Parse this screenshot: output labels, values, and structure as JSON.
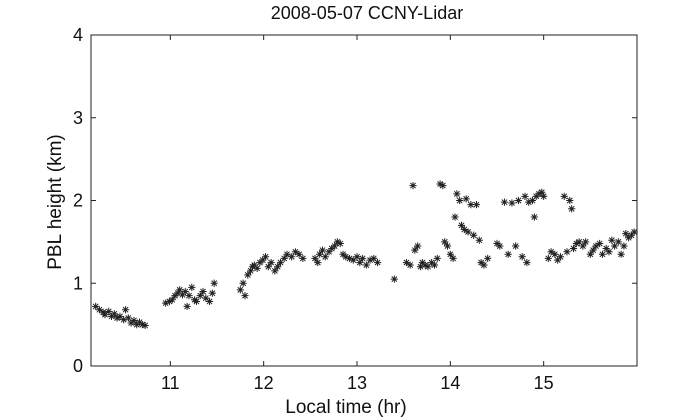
{
  "chart_data": {
    "type": "scatter",
    "title": "2008-05-07 CCNY-Lidar",
    "xlabel": "Local time (hr)",
    "ylabel": "PBL height (km)",
    "xlim": [
      10.15,
      16.0
    ],
    "ylim": [
      0,
      4
    ],
    "xticks": [
      11,
      12,
      13,
      14,
      15
    ],
    "yticks": [
      0,
      1,
      2,
      3,
      4
    ],
    "grid": false,
    "marker": "*",
    "color": "#222222",
    "points": [
      [
        10.2,
        0.72
      ],
      [
        10.24,
        0.68
      ],
      [
        10.28,
        0.65
      ],
      [
        10.3,
        0.62
      ],
      [
        10.34,
        0.66
      ],
      [
        10.37,
        0.6
      ],
      [
        10.4,
        0.63
      ],
      [
        10.43,
        0.58
      ],
      [
        10.46,
        0.6
      ],
      [
        10.5,
        0.56
      ],
      [
        10.52,
        0.68
      ],
      [
        10.55,
        0.58
      ],
      [
        10.58,
        0.52
      ],
      [
        10.61,
        0.55
      ],
      [
        10.64,
        0.5
      ],
      [
        10.67,
        0.53
      ],
      [
        10.7,
        0.5
      ],
      [
        10.73,
        0.49
      ],
      [
        10.95,
        0.76
      ],
      [
        10.99,
        0.78
      ],
      [
        11.02,
        0.8
      ],
      [
        11.05,
        0.85
      ],
      [
        11.08,
        0.88
      ],
      [
        11.1,
        0.92
      ],
      [
        11.13,
        0.86
      ],
      [
        11.16,
        0.9
      ],
      [
        11.18,
        0.72
      ],
      [
        11.2,
        0.85
      ],
      [
        11.23,
        0.95
      ],
      [
        11.26,
        0.8
      ],
      [
        11.28,
        0.78
      ],
      [
        11.32,
        0.85
      ],
      [
        11.35,
        0.9
      ],
      [
        11.38,
        0.82
      ],
      [
        11.42,
        0.78
      ],
      [
        11.45,
        0.88
      ],
      [
        11.47,
        1.0
      ],
      [
        11.75,
        0.92
      ],
      [
        11.78,
        1.0
      ],
      [
        11.8,
        0.85
      ],
      [
        11.83,
        1.1
      ],
      [
        11.86,
        1.15
      ],
      [
        11.88,
        1.2
      ],
      [
        11.9,
        1.22
      ],
      [
        11.93,
        1.18
      ],
      [
        11.96,
        1.25
      ],
      [
        11.99,
        1.28
      ],
      [
        12.02,
        1.32
      ],
      [
        12.05,
        1.2
      ],
      [
        12.08,
        1.25
      ],
      [
        12.12,
        1.15
      ],
      [
        12.15,
        1.2
      ],
      [
        12.18,
        1.25
      ],
      [
        12.22,
        1.3
      ],
      [
        12.25,
        1.35
      ],
      [
        12.3,
        1.32
      ],
      [
        12.34,
        1.38
      ],
      [
        12.38,
        1.35
      ],
      [
        12.42,
        1.3
      ],
      [
        12.55,
        1.3
      ],
      [
        12.58,
        1.25
      ],
      [
        12.6,
        1.35
      ],
      [
        12.63,
        1.4
      ],
      [
        12.66,
        1.32
      ],
      [
        12.7,
        1.38
      ],
      [
        12.73,
        1.42
      ],
      [
        12.76,
        1.45
      ],
      [
        12.79,
        1.5
      ],
      [
        12.82,
        1.48
      ],
      [
        12.85,
        1.35
      ],
      [
        12.88,
        1.32
      ],
      [
        12.92,
        1.3
      ],
      [
        12.96,
        1.28
      ],
      [
        13.0,
        1.32
      ],
      [
        13.03,
        1.25
      ],
      [
        13.06,
        1.3
      ],
      [
        13.1,
        1.22
      ],
      [
        13.14,
        1.28
      ],
      [
        13.18,
        1.3
      ],
      [
        13.22,
        1.25
      ],
      [
        13.4,
        1.05
      ],
      [
        13.53,
        1.25
      ],
      [
        13.57,
        1.22
      ],
      [
        13.6,
        2.18
      ],
      [
        13.62,
        1.4
      ],
      [
        13.65,
        1.45
      ],
      [
        13.68,
        1.2
      ],
      [
        13.7,
        1.25
      ],
      [
        13.73,
        1.22
      ],
      [
        13.76,
        1.2
      ],
      [
        13.8,
        1.25
      ],
      [
        13.83,
        1.22
      ],
      [
        13.86,
        1.3
      ],
      [
        13.89,
        2.2
      ],
      [
        13.92,
        2.18
      ],
      [
        13.94,
        1.5
      ],
      [
        13.97,
        1.45
      ],
      [
        14.0,
        1.35
      ],
      [
        14.03,
        1.3
      ],
      [
        14.05,
        1.8
      ],
      [
        14.07,
        2.08
      ],
      [
        14.1,
        2.0
      ],
      [
        14.12,
        1.7
      ],
      [
        14.15,
        1.65
      ],
      [
        14.17,
        2.02
      ],
      [
        14.19,
        1.62
      ],
      [
        14.22,
        1.95
      ],
      [
        14.25,
        1.58
      ],
      [
        14.28,
        1.95
      ],
      [
        14.31,
        1.52
      ],
      [
        14.33,
        1.25
      ],
      [
        14.36,
        1.22
      ],
      [
        14.4,
        1.3
      ],
      [
        14.5,
        1.48
      ],
      [
        14.53,
        1.45
      ],
      [
        14.58,
        1.98
      ],
      [
        14.62,
        1.35
      ],
      [
        14.66,
        1.97
      ],
      [
        14.7,
        1.45
      ],
      [
        14.73,
        2.0
      ],
      [
        14.77,
        1.32
      ],
      [
        14.8,
        2.05
      ],
      [
        14.82,
        1.25
      ],
      [
        14.84,
        1.98
      ],
      [
        14.88,
        2.0
      ],
      [
        14.9,
        1.8
      ],
      [
        14.92,
        2.05
      ],
      [
        14.95,
        2.08
      ],
      [
        14.98,
        2.1
      ],
      [
        15.0,
        2.05
      ],
      [
        15.05,
        1.3
      ],
      [
        15.08,
        1.38
      ],
      [
        15.12,
        1.35
      ],
      [
        15.15,
        1.28
      ],
      [
        15.18,
        1.32
      ],
      [
        15.22,
        2.05
      ],
      [
        15.25,
        1.38
      ],
      [
        15.28,
        2.0
      ],
      [
        15.3,
        1.9
      ],
      [
        15.32,
        1.42
      ],
      [
        15.35,
        1.48
      ],
      [
        15.38,
        1.5
      ],
      [
        15.42,
        1.45
      ],
      [
        15.45,
        1.5
      ],
      [
        15.5,
        1.35
      ],
      [
        15.53,
        1.4
      ],
      [
        15.56,
        1.45
      ],
      [
        15.6,
        1.48
      ],
      [
        15.63,
        1.35
      ],
      [
        15.67,
        1.42
      ],
      [
        15.7,
        1.38
      ],
      [
        15.73,
        1.52
      ],
      [
        15.76,
        1.45
      ],
      [
        15.8,
        1.5
      ],
      [
        15.83,
        1.35
      ],
      [
        15.86,
        1.45
      ],
      [
        15.88,
        1.6
      ],
      [
        15.91,
        1.55
      ],
      [
        15.94,
        1.58
      ],
      [
        15.97,
        1.62
      ]
    ]
  }
}
